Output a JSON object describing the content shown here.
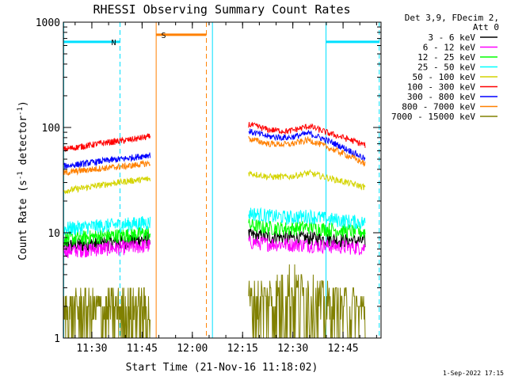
{
  "chart_data": {
    "type": "line",
    "title": "RHESSI Observing Summary Count Rates",
    "xlabel": "Start Time (21-Nov-16 11:18:02)",
    "ylabel_main": "Count Rate (s",
    "ylabel_sup1": "-1",
    "ylabel_mid": " detector",
    "ylabel_sup2": "-1",
    "ylabel_end": ")",
    "yscale": "log",
    "xlim": [
      11.3583,
      12.9389
    ],
    "ylim": [
      1,
      1000
    ],
    "x_ticks": [
      {
        "v": 11.5,
        "label": "11:30"
      },
      {
        "v": 11.75,
        "label": "11:45"
      },
      {
        "v": 12.0,
        "label": "12:00"
      },
      {
        "v": 12.25,
        "label": "12:15"
      },
      {
        "v": 12.5,
        "label": "12:30"
      },
      {
        "v": 12.75,
        "label": "12:45"
      }
    ],
    "y_ticks": [
      {
        "v": 1,
        "label": "1"
      },
      {
        "v": 10,
        "label": "10"
      },
      {
        "v": 100,
        "label": "100"
      },
      {
        "v": 1000,
        "label": "1000"
      }
    ],
    "legend_header": [
      "Det 3,9, FDecim 2,",
      "Att 0"
    ],
    "legend_position": "right",
    "series": [
      {
        "name": "3 - 6 keV",
        "color": "#000000",
        "x": [
          11.36,
          11.45,
          11.55,
          11.68,
          11.79,
          12.19,
          12.28,
          12.38,
          12.48,
          12.58,
          12.68,
          12.86
        ],
        "y": [
          7.5,
          7.7,
          7.9,
          8.3,
          8.8,
          null,
          9.5,
          9.2,
          9.0,
          8.9,
          8.7,
          8.3
        ]
      },
      {
        "name": "6 - 12 keV",
        "color": "#ff00ff",
        "x": [
          11.36,
          11.45,
          11.55,
          11.68,
          11.79,
          12.19,
          12.28,
          12.38,
          12.48,
          12.58,
          12.68,
          12.86
        ],
        "y": [
          6.8,
          6.9,
          7.1,
          7.3,
          7.6,
          null,
          8.2,
          7.9,
          7.8,
          7.7,
          7.5,
          7.2
        ]
      },
      {
        "name": "12 - 25 keV",
        "color": "#00ff00",
        "x": [
          11.36,
          11.45,
          11.55,
          11.68,
          11.79,
          12.19,
          12.28,
          12.38,
          12.48,
          12.58,
          12.68,
          12.86
        ],
        "y": [
          8.8,
          9.0,
          9.3,
          9.6,
          10.0,
          null,
          11.8,
          11.2,
          11.0,
          11.4,
          10.8,
          10.2
        ]
      },
      {
        "name": "25 - 50 keV",
        "color": "#00ffff",
        "x": [
          11.36,
          11.45,
          11.55,
          11.68,
          11.79,
          12.19,
          12.28,
          12.38,
          12.48,
          12.58,
          12.68,
          12.86
        ],
        "y": [
          11.0,
          11.3,
          11.7,
          12.1,
          12.6,
          null,
          15.5,
          14.5,
          14.0,
          14.5,
          13.5,
          12.5
        ]
      },
      {
        "name": "50 - 100 keV",
        "color": "#d4d400",
        "x": [
          11.36,
          11.45,
          11.55,
          11.68,
          11.79,
          12.19,
          12.28,
          12.38,
          12.48,
          12.58,
          12.68,
          12.86
        ],
        "y": [
          25,
          26.5,
          28.5,
          31,
          32.5,
          null,
          37,
          34,
          34,
          37,
          33,
          27
        ]
      },
      {
        "name": "100 - 300 keV",
        "color": "#ff0000",
        "x": [
          11.36,
          11.45,
          11.55,
          11.68,
          11.79,
          12.19,
          12.28,
          12.38,
          12.48,
          12.58,
          12.68,
          12.86
        ],
        "y": [
          62,
          66,
          71,
          76,
          82,
          null,
          107,
          95,
          92,
          103,
          88,
          68
        ]
      },
      {
        "name": "300 - 800 keV",
        "color": "#0000ff",
        "x": [
          11.36,
          11.45,
          11.55,
          11.68,
          11.79,
          12.19,
          12.28,
          12.38,
          12.48,
          12.58,
          12.68,
          12.86
        ],
        "y": [
          43,
          45,
          48,
          51,
          55,
          null,
          92,
          82,
          80,
          88,
          74,
          50
        ]
      },
      {
        "name": "800 - 7000 keV",
        "color": "#ff8000",
        "x": [
          11.36,
          11.45,
          11.55,
          11.68,
          11.79,
          12.19,
          12.28,
          12.38,
          12.48,
          12.58,
          12.68,
          12.86
        ],
        "y": [
          37,
          39,
          41,
          43,
          46,
          null,
          78,
          70,
          69,
          76,
          64,
          45
        ]
      },
      {
        "name": "7000 - 15000 keV",
        "color": "#808000",
        "x": [
          11.36,
          11.45,
          11.55,
          11.68,
          11.79,
          12.19,
          12.28,
          12.38,
          12.48,
          12.58,
          12.68,
          12.86
        ],
        "y": [
          1.9,
          2.0,
          2.0,
          2.1,
          2.1,
          null,
          2.5,
          2.8,
          3.6,
          3.2,
          2.4,
          2.0
        ]
      }
    ],
    "annotations": [
      {
        "type": "bar",
        "label": "N",
        "color": "#00e0ff",
        "x0": 11.36,
        "x1": 11.64,
        "y": 650
      },
      {
        "type": "bar",
        "label": "",
        "color": "#00e0ff",
        "x0": 12.665,
        "x1": 12.93,
        "y": 650
      },
      {
        "type": "bar",
        "label": "S",
        "color": "#ff8000",
        "x0": 11.82,
        "x1": 12.07,
        "y": 760
      }
    ],
    "vlines": [
      {
        "x": 11.36,
        "color": "#00e0ff",
        "style": "solid"
      },
      {
        "x": 11.64,
        "color": "#00e0ff",
        "style": "dashed"
      },
      {
        "x": 11.82,
        "color": "#ff8000",
        "style": "solid"
      },
      {
        "x": 12.07,
        "color": "#ff8000",
        "style": "dashed"
      },
      {
        "x": 12.1,
        "color": "#00e0ff",
        "style": "solid"
      },
      {
        "x": 12.665,
        "color": "#00e0ff",
        "style": "solid"
      },
      {
        "x": 12.93,
        "color": "#00e0ff",
        "style": "dashed"
      }
    ]
  },
  "footer_timestamp": "1-Sep-2022 17:15"
}
